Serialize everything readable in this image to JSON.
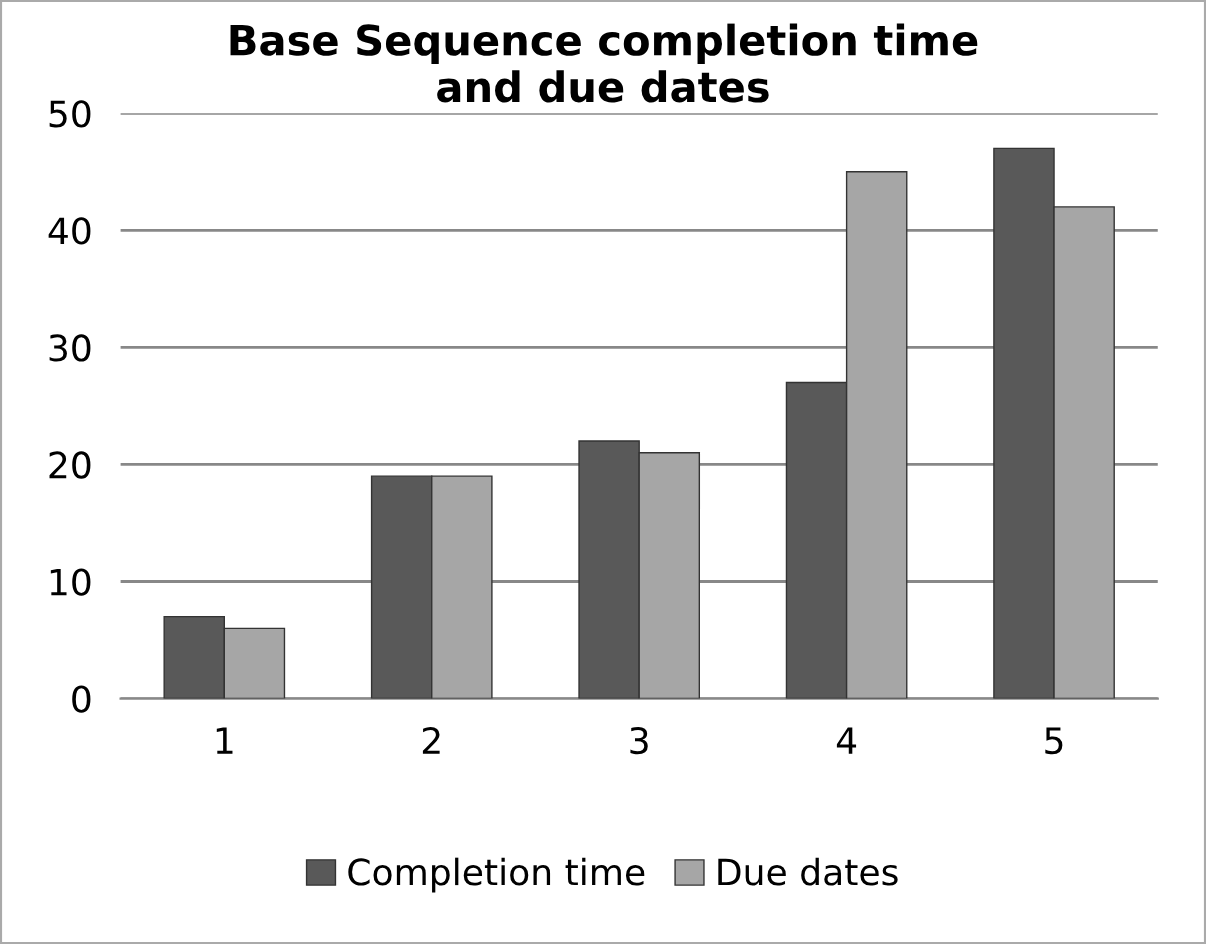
{
  "chart_data": {
    "type": "bar",
    "title": "Base Sequence completion time\nand due dates",
    "categories": [
      "1",
      "2",
      "3",
      "4",
      "5"
    ],
    "series": [
      {
        "name": "Completion time",
        "color": "#595959",
        "values": [
          7,
          19,
          22,
          27,
          47
        ]
      },
      {
        "name": "Due dates",
        "color": "#a6a6a6",
        "values": [
          6,
          19,
          21,
          45,
          42
        ]
      }
    ],
    "ylim": [
      0,
      50
    ],
    "yticks": [
      0,
      10,
      20,
      30,
      40,
      50
    ],
    "grid": "y",
    "legend": "bottom"
  }
}
